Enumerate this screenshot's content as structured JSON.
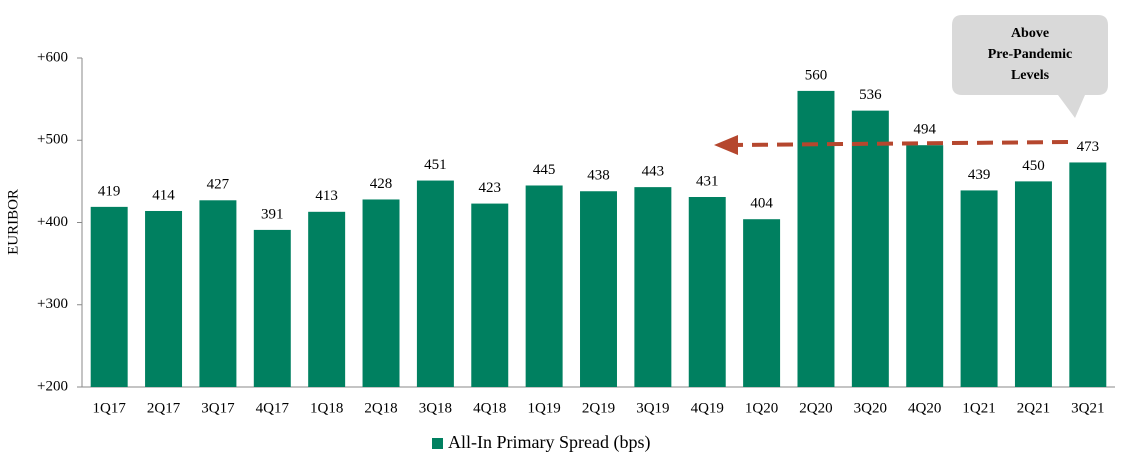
{
  "chart_data": {
    "type": "bar",
    "y_label": "EURIBOR",
    "categories": [
      "1Q17",
      "2Q17",
      "3Q17",
      "4Q17",
      "1Q18",
      "2Q18",
      "3Q18",
      "4Q18",
      "1Q19",
      "2Q19",
      "3Q19",
      "4Q19",
      "1Q20",
      "2Q20",
      "3Q20",
      "4Q20",
      "1Q21",
      "2Q21",
      "3Q21"
    ],
    "series": [
      {
        "name": "All-In Primary Spread (bps)",
        "color": "#008060",
        "values": [
          419,
          414,
          427,
          391,
          413,
          428,
          451,
          423,
          445,
          438,
          443,
          431,
          404,
          560,
          536,
          494,
          439,
          450,
          473
        ]
      }
    ],
    "ylim": [
      200,
      600
    ],
    "yticks": [
      {
        "value": 200,
        "label": "+200"
      },
      {
        "value": 300,
        "label": "+300"
      },
      {
        "value": 400,
        "label": "+400"
      },
      {
        "value": 500,
        "label": "+500"
      },
      {
        "value": 600,
        "label": "+600"
      }
    ],
    "annotation": [
      "Above",
      "Pre-Pandemic",
      "Levels"
    ]
  }
}
